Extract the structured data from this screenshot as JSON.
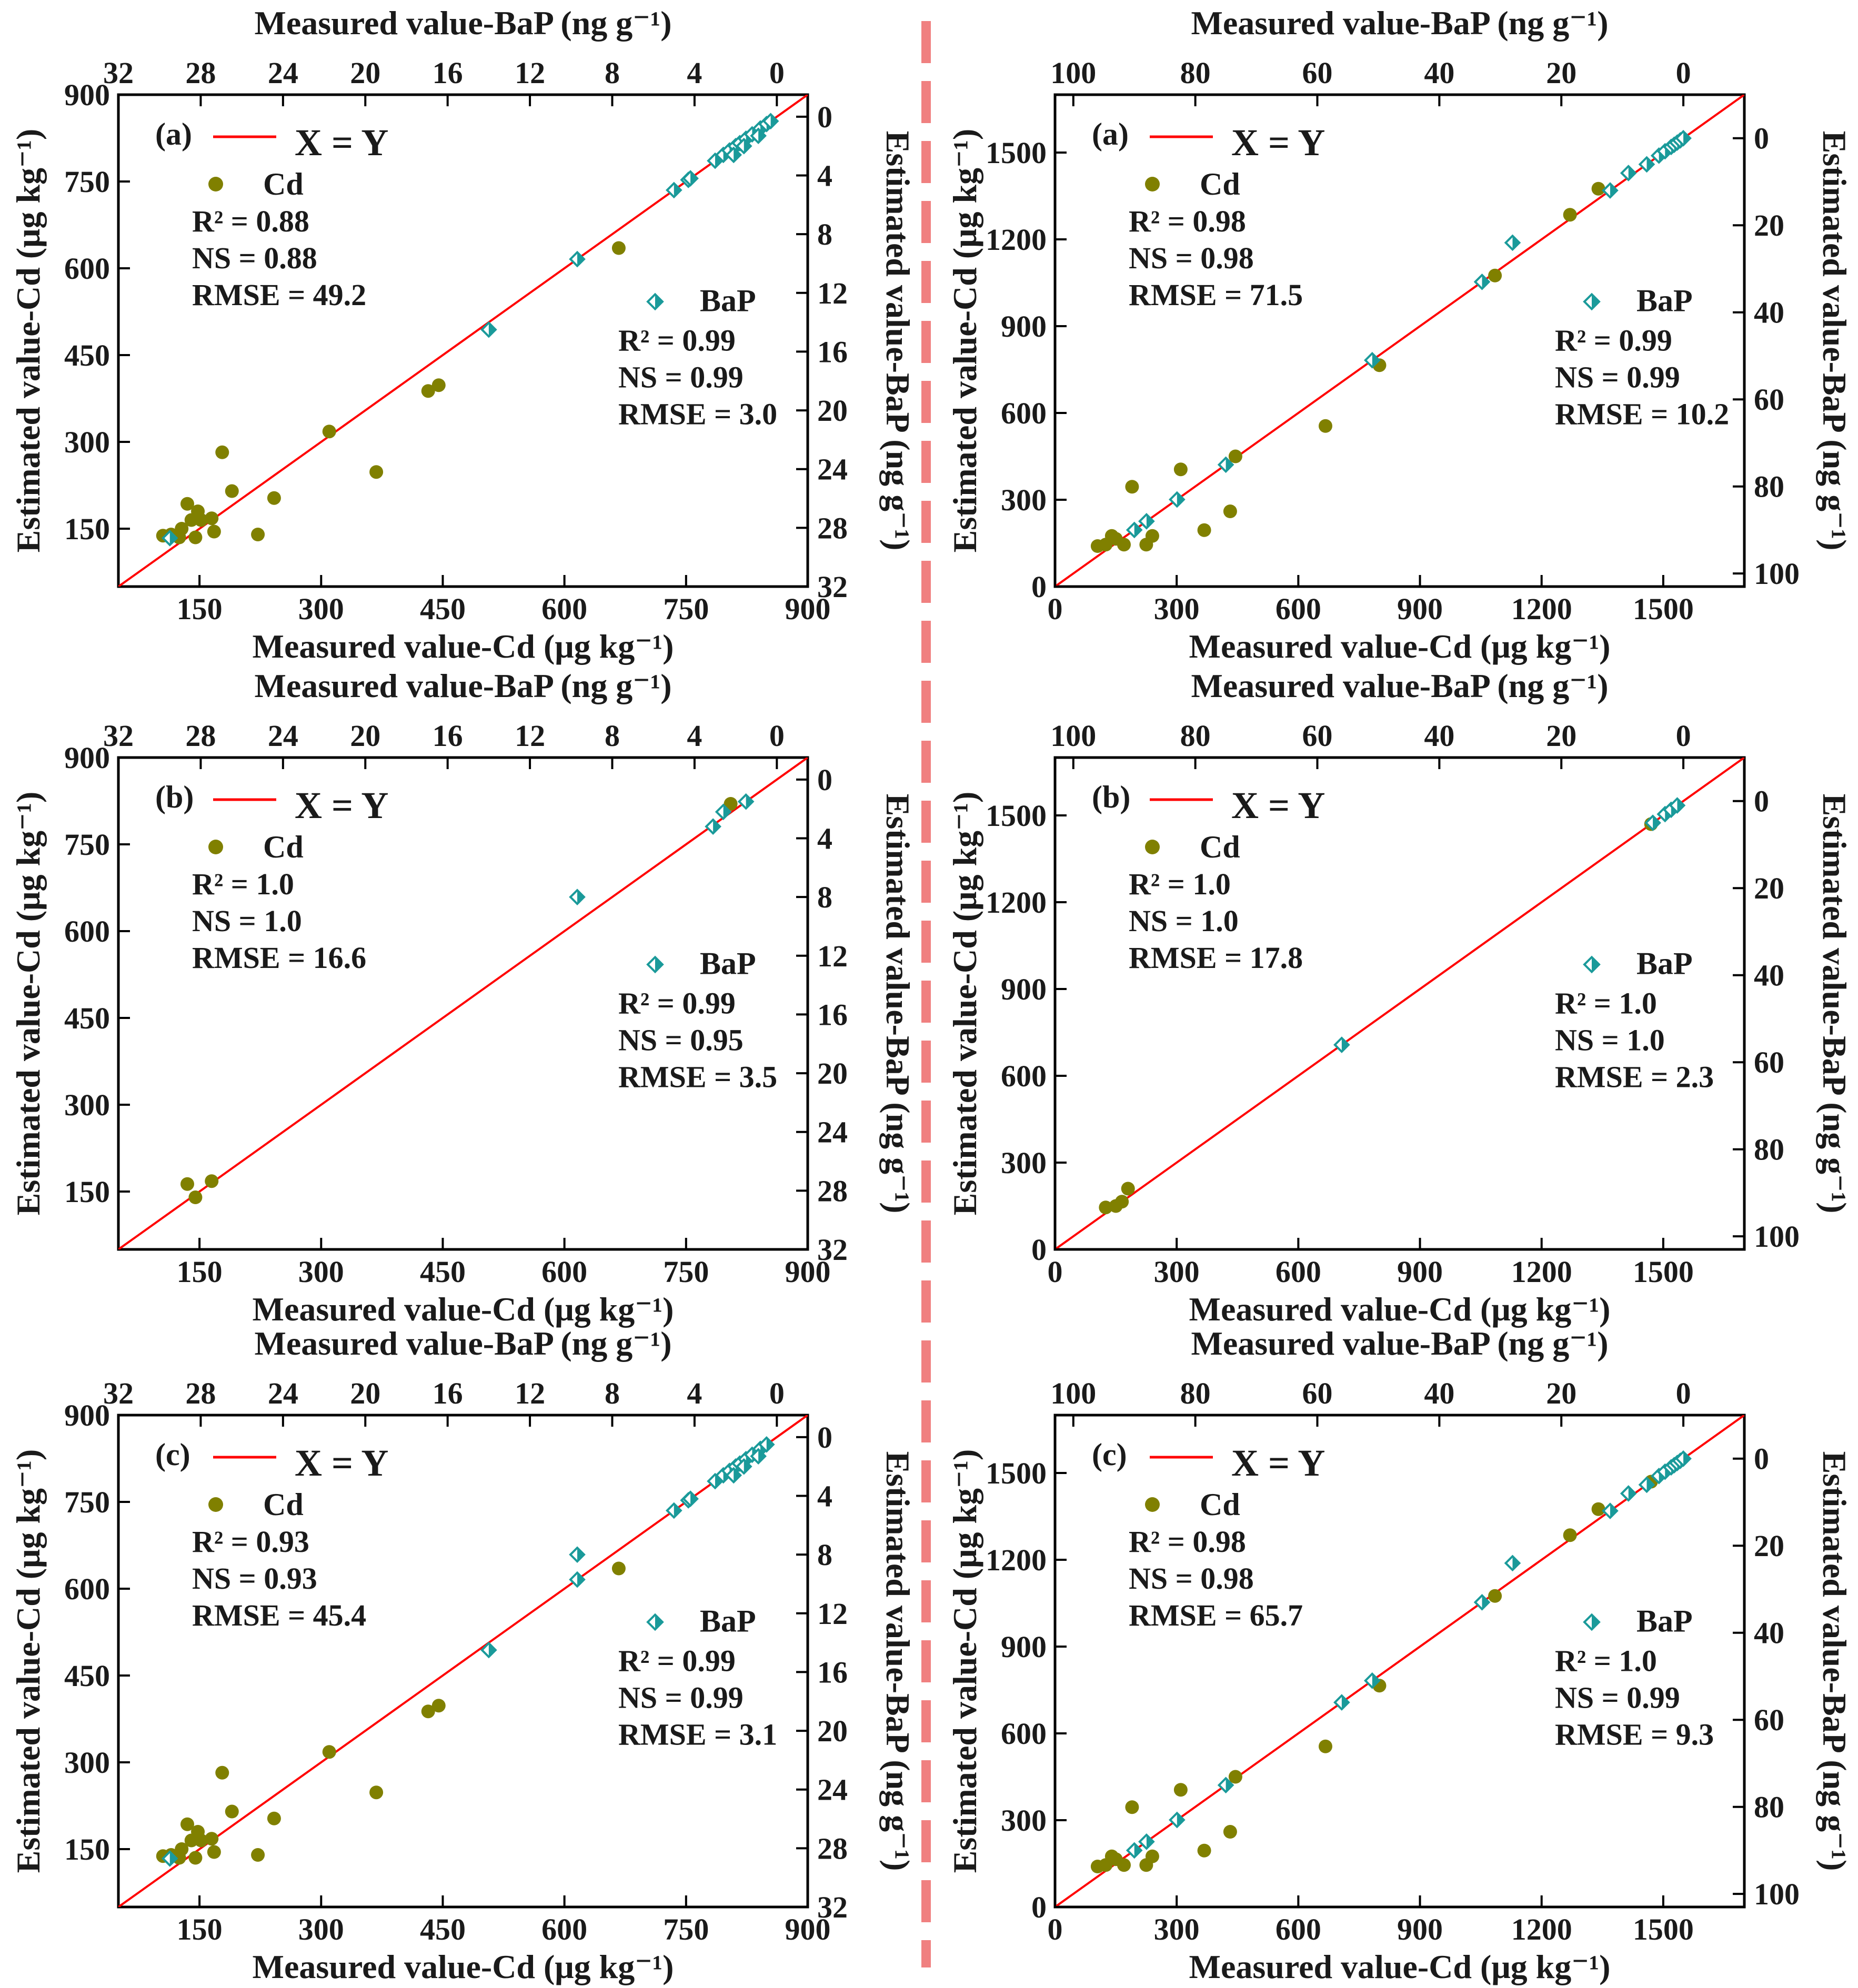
{
  "divider_color": "#f08080",
  "colors": {
    "cd_marker": "#808000",
    "bap_marker": "#1a9a9a",
    "line": "#ff0000",
    "axis": "#000000"
  },
  "chart_data": [
    {
      "id": "left-a",
      "type": "scatter",
      "panel_letter": "(a)",
      "bottom_label": "Measured value-Cd (μg kg⁻¹)",
      "top_label": "Measured value-BaP (ng g⁻¹)",
      "left_label": "Estimated value-Cd (μg kg⁻¹)",
      "right_label": "Estimated value-BaP (ng g⁻¹)",
      "xlim": [
        50,
        900
      ],
      "ylim": [
        50,
        900
      ],
      "x_ticks": [
        150,
        300,
        450,
        600,
        750,
        900
      ],
      "y_ticks": [
        150,
        300,
        450,
        600,
        750,
        900
      ],
      "bap_axis_range": [
        32,
        -1.5
      ],
      "bap_top_ticks": [
        32,
        28,
        24,
        20,
        16,
        12,
        8,
        4,
        0
      ],
      "bap_right_ticks": [
        0,
        4,
        8,
        12,
        16,
        20,
        24,
        28,
        32
      ],
      "line_label": "X = Y",
      "cd_label": "Cd",
      "bap_label": "BaP",
      "cd_stats": [
        "R² = 0.88",
        "NS = 0.88",
        "RMSE = 49.2"
      ],
      "bap_stats": [
        "R² = 0.99",
        "NS = 0.99",
        "RMSE = 3.0"
      ],
      "cd_points": [
        [
          105,
          138
        ],
        [
          115,
          140
        ],
        [
          125,
          135
        ],
        [
          128,
          150
        ],
        [
          135,
          193
        ],
        [
          140,
          165
        ],
        [
          145,
          135
        ],
        [
          148,
          180
        ],
        [
          152,
          165
        ],
        [
          165,
          168
        ],
        [
          168,
          145
        ],
        [
          178,
          282
        ],
        [
          190,
          215
        ],
        [
          222,
          140
        ],
        [
          242,
          203
        ],
        [
          310,
          318
        ],
        [
          368,
          248
        ],
        [
          432,
          388
        ],
        [
          445,
          398
        ],
        [
          667,
          635
        ]
      ],
      "bap_points": [
        [
          29.5,
          28.7
        ],
        [
          14.0,
          14.5
        ],
        [
          9.7,
          9.7
        ],
        [
          5.0,
          5.0
        ],
        [
          4.3,
          4.3
        ],
        [
          4.2,
          4.2
        ],
        [
          3.0,
          3.0
        ],
        [
          2.6,
          2.6
        ],
        [
          2.3,
          2.3
        ],
        [
          2.0,
          2.0
        ],
        [
          1.8,
          1.8
        ],
        [
          1.5,
          1.5
        ],
        [
          1.2,
          1.2
        ],
        [
          0.8,
          0.8
        ],
        [
          0.5,
          0.5
        ],
        [
          0.3,
          0.3
        ],
        [
          2.1,
          2.6
        ],
        [
          1.6,
          2.0
        ],
        [
          0.9,
          1.3
        ]
      ]
    },
    {
      "id": "right-a",
      "type": "scatter",
      "panel_letter": "(a)",
      "bottom_label": "Measured value-Cd (μg kg⁻¹)",
      "top_label": "Measured value-BaP (ng g⁻¹)",
      "left_label": "Estimated value-Cd (μg kg⁻¹)",
      "right_label": "Estimated value-BaP (ng g⁻¹)",
      "xlim": [
        0,
        1700
      ],
      "ylim": [
        0,
        1700
      ],
      "x_ticks": [
        0,
        300,
        600,
        900,
        1200,
        1500
      ],
      "y_ticks": [
        0,
        300,
        600,
        900,
        1200,
        1500
      ],
      "bap_axis_range": [
        103,
        -10
      ],
      "bap_top_ticks": [
        100,
        80,
        60,
        40,
        20,
        0
      ],
      "bap_right_ticks": [
        0,
        20,
        40,
        60,
        80,
        100
      ],
      "line_label": "X = Y",
      "cd_label": "Cd",
      "bap_label": "BaP",
      "cd_stats": [
        "R² = 0.98",
        "NS = 0.98",
        "RMSE = 71.5"
      ],
      "bap_stats": [
        "R² = 0.99",
        "NS = 0.99",
        "RMSE = 10.2"
      ],
      "cd_points": [
        [
          105,
          140
        ],
        [
          125,
          145
        ],
        [
          140,
          175
        ],
        [
          150,
          165
        ],
        [
          170,
          145
        ],
        [
          190,
          345
        ],
        [
          225,
          145
        ],
        [
          240,
          175
        ],
        [
          310,
          405
        ],
        [
          368,
          195
        ],
        [
          432,
          260
        ],
        [
          445,
          450
        ],
        [
          667,
          555
        ],
        [
          800,
          765
        ],
        [
          1085,
          1075
        ],
        [
          1270,
          1285
        ],
        [
          1340,
          1375
        ]
      ],
      "bap_points": [
        [
          90,
          90
        ],
        [
          88,
          88
        ],
        [
          83,
          83
        ],
        [
          75,
          75
        ],
        [
          51,
          51
        ],
        [
          33,
          33
        ],
        [
          28,
          24
        ],
        [
          12,
          12
        ],
        [
          9,
          8
        ],
        [
          6,
          6
        ],
        [
          4,
          4
        ],
        [
          3,
          3
        ],
        [
          2,
          2
        ],
        [
          1.5,
          1.5
        ],
        [
          1,
          1
        ],
        [
          0.5,
          0.5
        ],
        [
          0,
          0
        ]
      ]
    },
    {
      "id": "left-b",
      "type": "scatter",
      "panel_letter": "(b)",
      "bottom_label": "Measured value-Cd (μg kg⁻¹)",
      "top_label": "Measured value-BaP (ng g⁻¹)",
      "left_label": "Estimated value-Cd (μg kg⁻¹)",
      "right_label": "Estimated value-BaP (ng g⁻¹)",
      "xlim": [
        50,
        900
      ],
      "ylim": [
        50,
        900
      ],
      "x_ticks": [
        150,
        300,
        450,
        600,
        750,
        900
      ],
      "y_ticks": [
        150,
        300,
        450,
        600,
        750,
        900
      ],
      "bap_axis_range": [
        32,
        -1.5
      ],
      "bap_top_ticks": [
        32,
        28,
        24,
        20,
        16,
        12,
        8,
        4,
        0
      ],
      "bap_right_ticks": [
        0,
        4,
        8,
        12,
        16,
        20,
        24,
        28,
        32
      ],
      "line_label": "X = Y",
      "cd_label": "Cd",
      "bap_label": "BaP",
      "cd_stats": [
        "R² = 1.0",
        "NS = 1.0",
        "RMSE = 16.6"
      ],
      "bap_stats": [
        "R² = 0.99",
        "NS = 0.95",
        "RMSE = 3.5"
      ],
      "cd_points": [
        [
          135,
          163
        ],
        [
          145,
          140
        ],
        [
          165,
          168
        ],
        [
          805,
          820
        ]
      ],
      "bap_points": [
        [
          9.7,
          8.0
        ],
        [
          3.1,
          3.2
        ],
        [
          2.6,
          2.2
        ],
        [
          1.5,
          1.5
        ]
      ]
    },
    {
      "id": "right-b",
      "type": "scatter",
      "panel_letter": "(b)",
      "bottom_label": "Measured value-Cd (μg kg⁻¹)",
      "top_label": "Measured value-BaP (ng g⁻¹)",
      "left_label": "Estimated value-Cd (μg kg⁻¹)",
      "right_label": "Estimated value-BaP (ng g⁻¹)",
      "xlim": [
        0,
        1700
      ],
      "ylim": [
        0,
        1700
      ],
      "x_ticks": [
        0,
        300,
        600,
        900,
        1200,
        1500
      ],
      "y_ticks": [
        0,
        300,
        600,
        900,
        1200,
        1500
      ],
      "bap_axis_range": [
        103,
        -10
      ],
      "bap_top_ticks": [
        100,
        80,
        60,
        40,
        20,
        0
      ],
      "bap_right_ticks": [
        0,
        20,
        40,
        60,
        80,
        100
      ],
      "line_label": "X = Y",
      "cd_label": "Cd",
      "bap_label": "BaP",
      "cd_stats": [
        "R² = 1.0",
        "NS = 1.0",
        "RMSE = 17.8"
      ],
      "bap_stats": [
        "R² = 1.0",
        "NS = 1.0",
        "RMSE = 2.3"
      ],
      "cd_points": [
        [
          125,
          145
        ],
        [
          150,
          150
        ],
        [
          165,
          165
        ],
        [
          180,
          210
        ],
        [
          1470,
          1470
        ]
      ],
      "bap_points": [
        [
          56,
          56
        ],
        [
          5,
          5
        ],
        [
          3,
          3
        ],
        [
          2,
          2
        ],
        [
          1,
          1
        ]
      ]
    },
    {
      "id": "left-c",
      "type": "scatter",
      "panel_letter": "(c)",
      "bottom_label": "Measured value-Cd (μg kg⁻¹)",
      "top_label": "Measured value-BaP (ng g⁻¹)",
      "left_label": "Estimated value-Cd (μg kg⁻¹)",
      "right_label": "Estimated value-BaP (ng g⁻¹)",
      "xlim": [
        50,
        900
      ],
      "ylim": [
        50,
        900
      ],
      "x_ticks": [
        150,
        300,
        450,
        600,
        750,
        900
      ],
      "y_ticks": [
        150,
        300,
        450,
        600,
        750,
        900
      ],
      "bap_axis_range": [
        32,
        -1.5
      ],
      "bap_top_ticks": [
        32,
        28,
        24,
        20,
        16,
        12,
        8,
        4,
        0
      ],
      "bap_right_ticks": [
        0,
        4,
        8,
        12,
        16,
        20,
        24,
        28,
        32
      ],
      "line_label": "X = Y",
      "cd_label": "Cd",
      "bap_label": "BaP",
      "cd_stats": [
        "R² = 0.93",
        "NS = 0.93",
        "RMSE = 45.4"
      ],
      "bap_stats": [
        "R² = 0.99",
        "NS = 0.99",
        "RMSE = 3.1"
      ],
      "cd_points": [
        [
          105,
          138
        ],
        [
          115,
          140
        ],
        [
          125,
          135
        ],
        [
          128,
          150
        ],
        [
          135,
          193
        ],
        [
          140,
          165
        ],
        [
          145,
          135
        ],
        [
          148,
          180
        ],
        [
          152,
          165
        ],
        [
          165,
          168
        ],
        [
          168,
          145
        ],
        [
          178,
          282
        ],
        [
          190,
          215
        ],
        [
          222,
          140
        ],
        [
          242,
          203
        ],
        [
          310,
          318
        ],
        [
          368,
          248
        ],
        [
          432,
          388
        ],
        [
          445,
          398
        ],
        [
          667,
          635
        ]
      ],
      "bap_points": [
        [
          29.5,
          28.7
        ],
        [
          14.0,
          14.5
        ],
        [
          9.7,
          9.7
        ],
        [
          9.7,
          8.0
        ],
        [
          5.0,
          5.0
        ],
        [
          4.3,
          4.3
        ],
        [
          4.2,
          4.2
        ],
        [
          3.0,
          3.0
        ],
        [
          2.6,
          2.6
        ],
        [
          2.3,
          2.3
        ],
        [
          2.0,
          2.0
        ],
        [
          1.8,
          1.8
        ],
        [
          1.5,
          1.5
        ],
        [
          1.2,
          1.2
        ],
        [
          0.8,
          0.8
        ],
        [
          0.5,
          0.5
        ],
        [
          2.1,
          2.6
        ],
        [
          1.6,
          2.0
        ],
        [
          0.9,
          1.3
        ]
      ]
    },
    {
      "id": "right-c",
      "type": "scatter",
      "panel_letter": "(c)",
      "bottom_label": "Measured value-Cd (μg kg⁻¹)",
      "top_label": "Measured value-BaP (ng g⁻¹)",
      "left_label": "Estimated value-Cd (μg kg⁻¹)",
      "right_label": "Estimated value-BaP (ng g⁻¹)",
      "xlim": [
        0,
        1700
      ],
      "ylim": [
        0,
        1700
      ],
      "x_ticks": [
        0,
        300,
        600,
        900,
        1200,
        1500
      ],
      "y_ticks": [
        0,
        300,
        600,
        900,
        1200,
        1500
      ],
      "bap_axis_range": [
        103,
        -10
      ],
      "bap_top_ticks": [
        100,
        80,
        60,
        40,
        20,
        0
      ],
      "bap_right_ticks": [
        0,
        20,
        40,
        60,
        80,
        100
      ],
      "line_label": "X = Y",
      "cd_label": "Cd",
      "bap_label": "BaP",
      "cd_stats": [
        "R² = 0.98",
        "NS = 0.98",
        "RMSE = 65.7"
      ],
      "bap_stats": [
        "R² = 1.0",
        "NS = 0.99",
        "RMSE = 9.3"
      ],
      "cd_points": [
        [
          105,
          140
        ],
        [
          125,
          145
        ],
        [
          140,
          175
        ],
        [
          150,
          165
        ],
        [
          170,
          145
        ],
        [
          190,
          345
        ],
        [
          225,
          145
        ],
        [
          240,
          175
        ],
        [
          310,
          405
        ],
        [
          368,
          195
        ],
        [
          432,
          260
        ],
        [
          445,
          450
        ],
        [
          667,
          555
        ],
        [
          800,
          765
        ],
        [
          1085,
          1075
        ],
        [
          1270,
          1285
        ],
        [
          1340,
          1375
        ],
        [
          1470,
          1470
        ]
      ],
      "bap_points": [
        [
          90,
          90
        ],
        [
          88,
          88
        ],
        [
          83,
          83
        ],
        [
          75,
          75
        ],
        [
          56,
          56
        ],
        [
          51,
          51
        ],
        [
          33,
          33
        ],
        [
          28,
          24
        ],
        [
          12,
          12
        ],
        [
          9,
          8
        ],
        [
          6,
          6
        ],
        [
          4,
          4
        ],
        [
          3,
          3
        ],
        [
          2,
          2
        ],
        [
          1.5,
          1.5
        ],
        [
          1,
          1
        ],
        [
          0.5,
          0.5
        ],
        [
          0,
          0
        ]
      ]
    }
  ]
}
